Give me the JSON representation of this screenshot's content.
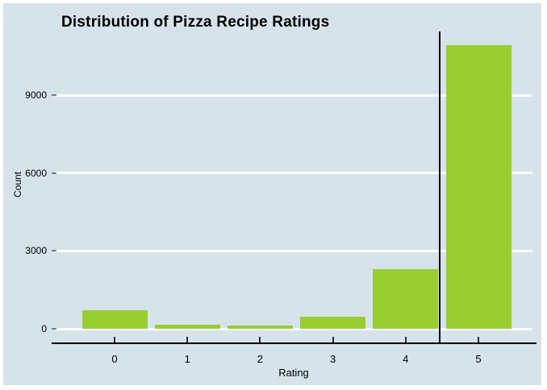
{
  "chart_data": {
    "type": "bar",
    "title": "Distribution of Pizza Recipe Ratings",
    "xlabel": "Rating",
    "ylabel": "Count",
    "categories": [
      "0",
      "1",
      "2",
      "3",
      "4",
      "5"
    ],
    "values": [
      715,
      165,
      135,
      460,
      2290,
      10940
    ],
    "yticks": [
      0,
      3000,
      6000,
      9000
    ],
    "ytick_labels": [
      "0",
      "3000",
      "6000",
      "9000"
    ],
    "ylim": [
      0,
      11465
    ],
    "grid": true,
    "legend": "none",
    "annotations": [
      {
        "type": "vline",
        "x": 4.47,
        "name": "mean-rating-line"
      }
    ],
    "colors": {
      "bar": "#9acd32",
      "plot_background": "#d6e3ea",
      "gridline": "#ffffff",
      "axis": "#000000",
      "text": "#000000",
      "frame": "#ffffff"
    }
  }
}
